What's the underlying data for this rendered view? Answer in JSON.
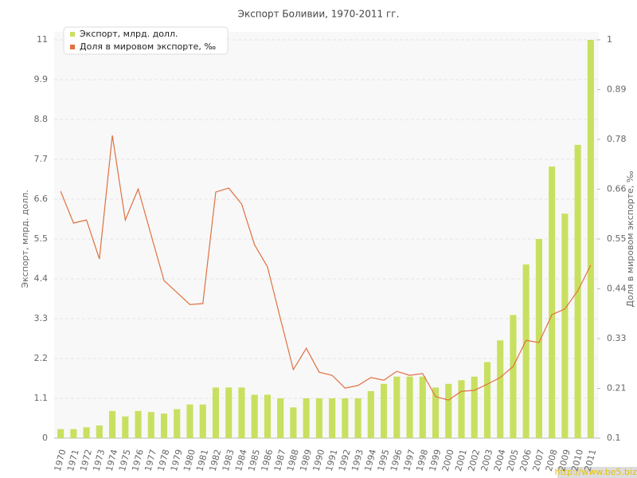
{
  "chart_data": {
    "type": "bar_line",
    "title": "Экспорт Боливии, 1970-2011 гг.",
    "y_label": "Экспорт, млрд. долл.",
    "y2_label": "Доля в мировом экспорте, ‰",
    "watermark": "http://www.be5.biz/",
    "categories": [
      "1970",
      "1971",
      "1972",
      "1973",
      "1974",
      "1975",
      "1976",
      "1977",
      "1978",
      "1979",
      "1980",
      "1981",
      "1982",
      "1983",
      "1984",
      "1985",
      "1986",
      "1987",
      "1988",
      "1989",
      "1990",
      "1991",
      "1992",
      "1993",
      "1994",
      "1995",
      "1996",
      "1997",
      "1998",
      "1999",
      "2000",
      "2001",
      "2002",
      "2003",
      "2004",
      "2005",
      "2006",
      "2007",
      "2008",
      "2009",
      "2010",
      "2011"
    ],
    "series": [
      {
        "name": "Экспорт, млрд. долл.",
        "color": "#c8e060",
        "kind": "bar",
        "values": [
          0.25,
          0.25,
          0.3,
          0.35,
          0.75,
          0.6,
          0.75,
          0.72,
          0.68,
          0.8,
          0.93,
          0.93,
          1.4,
          1.4,
          1.4,
          1.2,
          1.2,
          1.1,
          0.85,
          1.1,
          1.1,
          1.1,
          1.1,
          1.1,
          1.3,
          1.5,
          1.7,
          1.7,
          1.7,
          1.4,
          1.5,
          1.6,
          1.7,
          2.1,
          2.7,
          3.4,
          4.8,
          5.5,
          7.5,
          6.2,
          8.1,
          11.0
        ]
      },
      {
        "name": "Доля в мировом экспорте, ‰",
        "color": "#e07040",
        "kind": "line",
        "axis": "y2",
        "values": [
          0.658,
          0.586,
          0.593,
          0.505,
          0.784,
          0.593,
          0.663,
          0.559,
          0.456,
          0.429,
          0.402,
          0.404,
          0.656,
          0.665,
          0.629,
          0.537,
          0.487,
          0.37,
          0.255,
          0.303,
          0.249,
          0.242,
          0.213,
          0.219,
          0.237,
          0.231,
          0.251,
          0.242,
          0.246,
          0.194,
          0.186,
          0.206,
          0.208,
          0.222,
          0.237,
          0.262,
          0.321,
          0.316,
          0.379,
          0.392,
          0.433,
          0.491
        ]
      }
    ],
    "ylim": [
      0,
      11
    ],
    "yticks": [
      0,
      1.1,
      2.2,
      3.3,
      4.4,
      5.5,
      6.6,
      7.7,
      8.8,
      9.9,
      11
    ],
    "y2lim": [
      0.1,
      1
    ],
    "y2ticks": [
      0.1,
      {
        "value": 0.2125,
        "label": "0.21"
      },
      {
        "value": 0.325,
        "label": "0.33"
      },
      {
        "value": 0.4375,
        "label": "0.44"
      },
      0.55,
      {
        "value": 0.6625,
        "label": "0.66"
      },
      {
        "value": 0.775,
        "label": "0.78"
      },
      {
        "value": 0.8875,
        "label": "0.89"
      },
      1
    ],
    "grid": true
  }
}
